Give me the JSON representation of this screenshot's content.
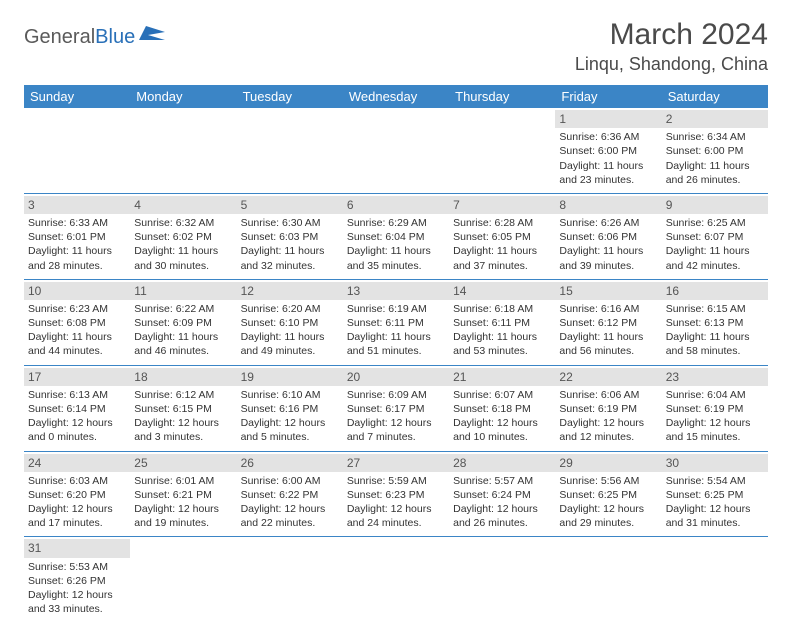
{
  "logo": {
    "text_general": "General",
    "text_blue": "Blue"
  },
  "header": {
    "month_title": "March 2024",
    "location": "Linqu, Shandong, China"
  },
  "colors": {
    "header_bg": "#3b85c6",
    "header_text": "#ffffff",
    "daynum_bg": "#e3e3e3",
    "daynum_text": "#555555",
    "cell_text": "#333333",
    "border": "#3b85c6",
    "title_text": "#4a4a4a",
    "logo_gray": "#5a5a5a",
    "logo_blue": "#2970b8"
  },
  "day_headers": [
    "Sunday",
    "Monday",
    "Tuesday",
    "Wednesday",
    "Thursday",
    "Friday",
    "Saturday"
  ],
  "weeks": [
    [
      {
        "n": "",
        "sr": "",
        "ss": "",
        "d1": "",
        "d2": ""
      },
      {
        "n": "",
        "sr": "",
        "ss": "",
        "d1": "",
        "d2": ""
      },
      {
        "n": "",
        "sr": "",
        "ss": "",
        "d1": "",
        "d2": ""
      },
      {
        "n": "",
        "sr": "",
        "ss": "",
        "d1": "",
        "d2": ""
      },
      {
        "n": "",
        "sr": "",
        "ss": "",
        "d1": "",
        "d2": ""
      },
      {
        "n": "1",
        "sr": "Sunrise: 6:36 AM",
        "ss": "Sunset: 6:00 PM",
        "d1": "Daylight: 11 hours",
        "d2": "and 23 minutes."
      },
      {
        "n": "2",
        "sr": "Sunrise: 6:34 AM",
        "ss": "Sunset: 6:00 PM",
        "d1": "Daylight: 11 hours",
        "d2": "and 26 minutes."
      }
    ],
    [
      {
        "n": "3",
        "sr": "Sunrise: 6:33 AM",
        "ss": "Sunset: 6:01 PM",
        "d1": "Daylight: 11 hours",
        "d2": "and 28 minutes."
      },
      {
        "n": "4",
        "sr": "Sunrise: 6:32 AM",
        "ss": "Sunset: 6:02 PM",
        "d1": "Daylight: 11 hours",
        "d2": "and 30 minutes."
      },
      {
        "n": "5",
        "sr": "Sunrise: 6:30 AM",
        "ss": "Sunset: 6:03 PM",
        "d1": "Daylight: 11 hours",
        "d2": "and 32 minutes."
      },
      {
        "n": "6",
        "sr": "Sunrise: 6:29 AM",
        "ss": "Sunset: 6:04 PM",
        "d1": "Daylight: 11 hours",
        "d2": "and 35 minutes."
      },
      {
        "n": "7",
        "sr": "Sunrise: 6:28 AM",
        "ss": "Sunset: 6:05 PM",
        "d1": "Daylight: 11 hours",
        "d2": "and 37 minutes."
      },
      {
        "n": "8",
        "sr": "Sunrise: 6:26 AM",
        "ss": "Sunset: 6:06 PM",
        "d1": "Daylight: 11 hours",
        "d2": "and 39 minutes."
      },
      {
        "n": "9",
        "sr": "Sunrise: 6:25 AM",
        "ss": "Sunset: 6:07 PM",
        "d1": "Daylight: 11 hours",
        "d2": "and 42 minutes."
      }
    ],
    [
      {
        "n": "10",
        "sr": "Sunrise: 6:23 AM",
        "ss": "Sunset: 6:08 PM",
        "d1": "Daylight: 11 hours",
        "d2": "and 44 minutes."
      },
      {
        "n": "11",
        "sr": "Sunrise: 6:22 AM",
        "ss": "Sunset: 6:09 PM",
        "d1": "Daylight: 11 hours",
        "d2": "and 46 minutes."
      },
      {
        "n": "12",
        "sr": "Sunrise: 6:20 AM",
        "ss": "Sunset: 6:10 PM",
        "d1": "Daylight: 11 hours",
        "d2": "and 49 minutes."
      },
      {
        "n": "13",
        "sr": "Sunrise: 6:19 AM",
        "ss": "Sunset: 6:11 PM",
        "d1": "Daylight: 11 hours",
        "d2": "and 51 minutes."
      },
      {
        "n": "14",
        "sr": "Sunrise: 6:18 AM",
        "ss": "Sunset: 6:11 PM",
        "d1": "Daylight: 11 hours",
        "d2": "and 53 minutes."
      },
      {
        "n": "15",
        "sr": "Sunrise: 6:16 AM",
        "ss": "Sunset: 6:12 PM",
        "d1": "Daylight: 11 hours",
        "d2": "and 56 minutes."
      },
      {
        "n": "16",
        "sr": "Sunrise: 6:15 AM",
        "ss": "Sunset: 6:13 PM",
        "d1": "Daylight: 11 hours",
        "d2": "and 58 minutes."
      }
    ],
    [
      {
        "n": "17",
        "sr": "Sunrise: 6:13 AM",
        "ss": "Sunset: 6:14 PM",
        "d1": "Daylight: 12 hours",
        "d2": "and 0 minutes."
      },
      {
        "n": "18",
        "sr": "Sunrise: 6:12 AM",
        "ss": "Sunset: 6:15 PM",
        "d1": "Daylight: 12 hours",
        "d2": "and 3 minutes."
      },
      {
        "n": "19",
        "sr": "Sunrise: 6:10 AM",
        "ss": "Sunset: 6:16 PM",
        "d1": "Daylight: 12 hours",
        "d2": "and 5 minutes."
      },
      {
        "n": "20",
        "sr": "Sunrise: 6:09 AM",
        "ss": "Sunset: 6:17 PM",
        "d1": "Daylight: 12 hours",
        "d2": "and 7 minutes."
      },
      {
        "n": "21",
        "sr": "Sunrise: 6:07 AM",
        "ss": "Sunset: 6:18 PM",
        "d1": "Daylight: 12 hours",
        "d2": "and 10 minutes."
      },
      {
        "n": "22",
        "sr": "Sunrise: 6:06 AM",
        "ss": "Sunset: 6:19 PM",
        "d1": "Daylight: 12 hours",
        "d2": "and 12 minutes."
      },
      {
        "n": "23",
        "sr": "Sunrise: 6:04 AM",
        "ss": "Sunset: 6:19 PM",
        "d1": "Daylight: 12 hours",
        "d2": "and 15 minutes."
      }
    ],
    [
      {
        "n": "24",
        "sr": "Sunrise: 6:03 AM",
        "ss": "Sunset: 6:20 PM",
        "d1": "Daylight: 12 hours",
        "d2": "and 17 minutes."
      },
      {
        "n": "25",
        "sr": "Sunrise: 6:01 AM",
        "ss": "Sunset: 6:21 PM",
        "d1": "Daylight: 12 hours",
        "d2": "and 19 minutes."
      },
      {
        "n": "26",
        "sr": "Sunrise: 6:00 AM",
        "ss": "Sunset: 6:22 PM",
        "d1": "Daylight: 12 hours",
        "d2": "and 22 minutes."
      },
      {
        "n": "27",
        "sr": "Sunrise: 5:59 AM",
        "ss": "Sunset: 6:23 PM",
        "d1": "Daylight: 12 hours",
        "d2": "and 24 minutes."
      },
      {
        "n": "28",
        "sr": "Sunrise: 5:57 AM",
        "ss": "Sunset: 6:24 PM",
        "d1": "Daylight: 12 hours",
        "d2": "and 26 minutes."
      },
      {
        "n": "29",
        "sr": "Sunrise: 5:56 AM",
        "ss": "Sunset: 6:25 PM",
        "d1": "Daylight: 12 hours",
        "d2": "and 29 minutes."
      },
      {
        "n": "30",
        "sr": "Sunrise: 5:54 AM",
        "ss": "Sunset: 6:25 PM",
        "d1": "Daylight: 12 hours",
        "d2": "and 31 minutes."
      }
    ],
    [
      {
        "n": "31",
        "sr": "Sunrise: 5:53 AM",
        "ss": "Sunset: 6:26 PM",
        "d1": "Daylight: 12 hours",
        "d2": "and 33 minutes."
      },
      {
        "n": "",
        "sr": "",
        "ss": "",
        "d1": "",
        "d2": ""
      },
      {
        "n": "",
        "sr": "",
        "ss": "",
        "d1": "",
        "d2": ""
      },
      {
        "n": "",
        "sr": "",
        "ss": "",
        "d1": "",
        "d2": ""
      },
      {
        "n": "",
        "sr": "",
        "ss": "",
        "d1": "",
        "d2": ""
      },
      {
        "n": "",
        "sr": "",
        "ss": "",
        "d1": "",
        "d2": ""
      },
      {
        "n": "",
        "sr": "",
        "ss": "",
        "d1": "",
        "d2": ""
      }
    ]
  ]
}
